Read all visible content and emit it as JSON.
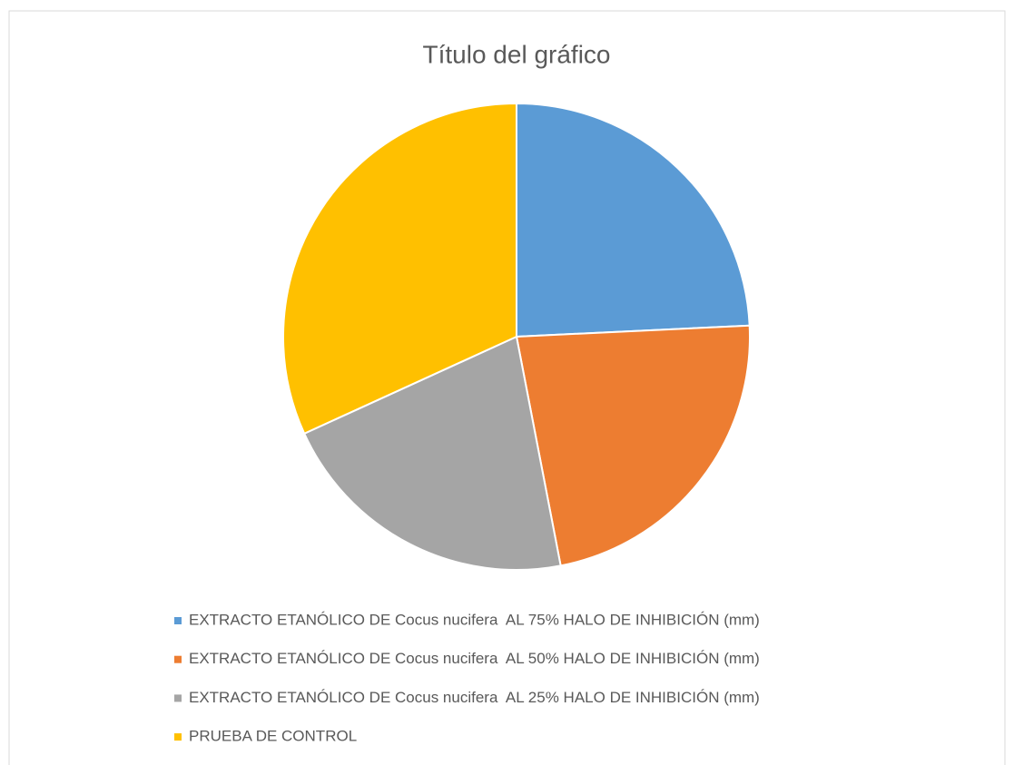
{
  "chart_data": {
    "type": "pie",
    "title": "Título del gráfico",
    "categories": [
      "EXTRACTO ETANÓLICO DE Cocus nucifera  AL 75% HALO DE INHIBICIÓN (mm)",
      "EXTRACTO ETANÓLICO DE Cocus nucifera  AL 50% HALO DE INHIBICIÓN (mm)",
      "EXTRACTO ETANÓLICO DE Cocus nucifera  AL 25% HALO DE INHIBICIÓN (mm)",
      "PRUEBA DE CONTROL"
    ],
    "values": [
      16,
      15,
      14,
      21
    ],
    "colors": [
      "#5b9bd5",
      "#ed7d31",
      "#a5a5a5",
      "#ffc000"
    ],
    "legend": "bottom"
  }
}
